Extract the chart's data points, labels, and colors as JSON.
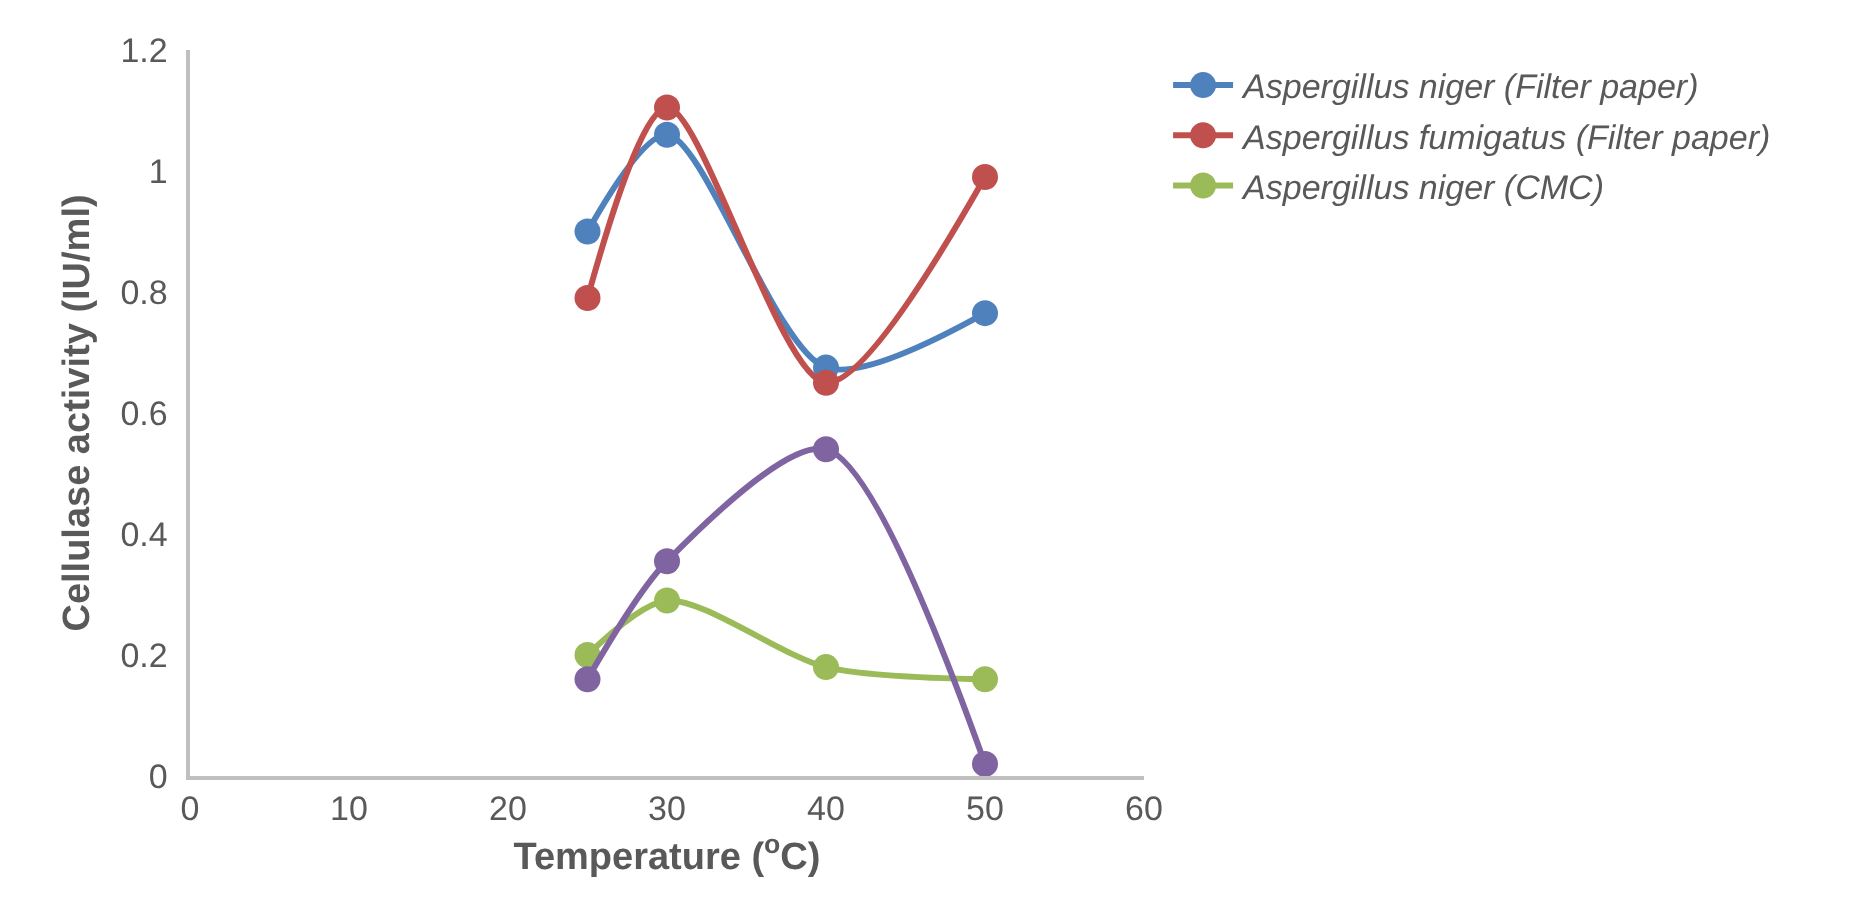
{
  "chart_data": {
    "type": "line",
    "xlabel": "Temperature ($^{o}$C)",
    "ylabel": "Cellulase activity (IU/ml)",
    "x": [
      25,
      30,
      40,
      50
    ],
    "series": [
      {
        "name": "Aspergillus niger (Filter paper)",
        "color": "#4f81bd",
        "values": [
          0.9,
          1.06,
          0.675,
          0.765
        ]
      },
      {
        "name": "Aspergillus fumigatus (Filter paper)",
        "color": "#c0504d",
        "values": [
          0.79,
          1.105,
          0.65,
          0.99
        ]
      },
      {
        "name": "Aspergillus niger (CMC)",
        "color": "#9bbb59",
        "values": [
          0.2,
          0.29,
          0.18,
          0.16
        ]
      },
      {
        "color": "#8064a2",
        "values": [
          0.16,
          0.355,
          0.54,
          0.02
        ]
      }
    ],
    "xlim": [
      0,
      60
    ],
    "xticks": [
      0,
      10,
      20,
      30,
      40,
      50,
      60
    ],
    "ylim": [
      0,
      1.2
    ],
    "yticks": [
      0,
      0.2,
      0.4,
      0.6,
      0.8,
      1,
      1.2
    ],
    "grid": false,
    "legend": "top right",
    "marker": "circle",
    "line_style": "solid"
  }
}
